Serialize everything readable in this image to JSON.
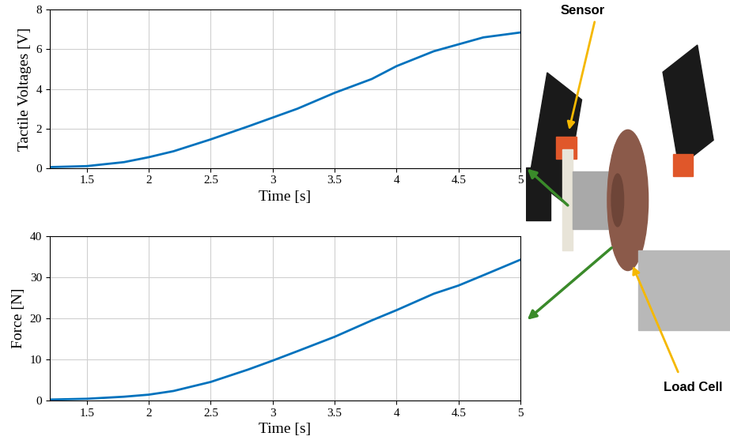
{
  "chart_data": [
    {
      "type": "line",
      "x_label": "Time [s]",
      "y_label": "Tactile Voltages [V]",
      "x": [
        1.2,
        1.5,
        1.8,
        2.0,
        2.2,
        2.5,
        2.8,
        3.0,
        3.2,
        3.5,
        3.8,
        4.0,
        4.3,
        4.5,
        4.7,
        5.0
      ],
      "values": [
        0.05,
        0.1,
        0.3,
        0.55,
        0.85,
        1.45,
        2.1,
        2.55,
        3.0,
        3.8,
        4.5,
        5.15,
        5.9,
        6.25,
        6.6,
        6.85
      ],
      "color": "#0072bd",
      "xlim": [
        1.2,
        5
      ],
      "xticks": [
        1.5,
        2,
        2.5,
        3,
        3.5,
        4,
        4.5,
        5
      ],
      "ylim": [
        0,
        8
      ],
      "yticks": [
        0,
        2,
        4,
        6,
        8
      ],
      "grid": true
    },
    {
      "type": "line",
      "x_label": "Time [s]",
      "y_label": "Force [N]",
      "x": [
        1.2,
        1.5,
        1.8,
        2.0,
        2.2,
        2.5,
        2.8,
        3.0,
        3.2,
        3.5,
        3.8,
        4.0,
        4.3,
        4.5,
        4.7,
        5.0
      ],
      "values": [
        0.2,
        0.4,
        0.9,
        1.4,
        2.3,
        4.5,
        7.5,
        9.7,
        12,
        15.5,
        19.5,
        22,
        26,
        28,
        30.5,
        34.3
      ],
      "color": "#0072bd",
      "xlim": [
        1.2,
        5
      ],
      "xticks": [
        1.5,
        2,
        2.5,
        3,
        3.5,
        4,
        4.5,
        5
      ],
      "ylim": [
        0,
        40
      ],
      "yticks": [
        0,
        10,
        20,
        30,
        40
      ],
      "grid": true
    }
  ],
  "photo": {
    "labels": [
      "Sensor",
      "Load Cell"
    ]
  }
}
